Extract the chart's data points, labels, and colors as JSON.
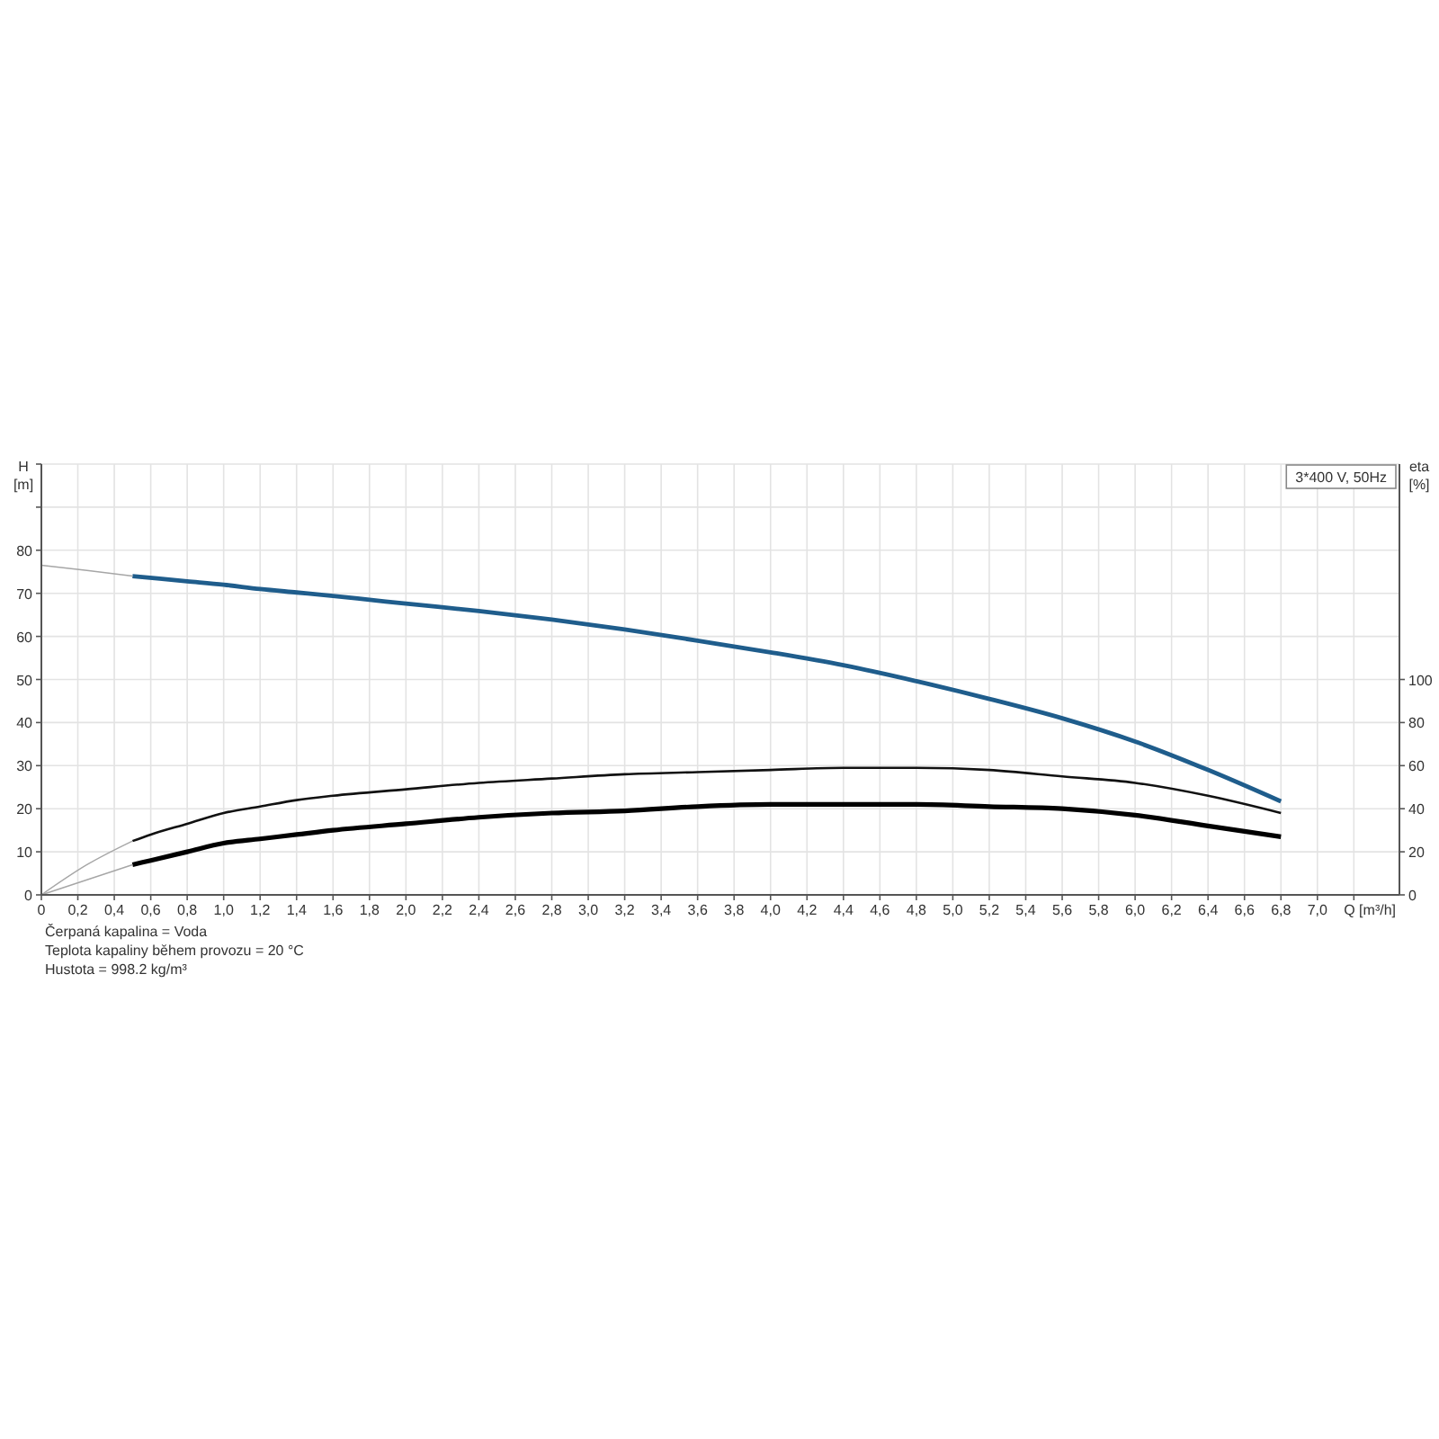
{
  "chart_data": {
    "type": "line",
    "title": "3*400 V, 50Hz",
    "xlabel": "Q [m³/h]",
    "ylabel": "H\n[m]",
    "y2label": "eta\n[%]",
    "annotations": [
      "Čerpaná kapalina = Voda",
      "Teplota kapaliny během provozu = 20 °C",
      "Hustota = 998.2 kg/m³"
    ],
    "xlim": [
      0,
      7.45
    ],
    "ylim": [
      0,
      100
    ],
    "y2lim": [
      0,
      200
    ],
    "xticks": [
      0,
      {
        "value": 0.2,
        "label": "0,2"
      },
      {
        "value": 0.4,
        "label": "0,4"
      },
      {
        "value": 0.6,
        "label": "0,6"
      },
      {
        "value": 0.8,
        "label": "0,8"
      },
      {
        "value": 1.0,
        "label": "1,0"
      },
      {
        "value": 1.2,
        "label": "1,2"
      },
      {
        "value": 1.4,
        "label": "1,4"
      },
      {
        "value": 1.6,
        "label": "1,6"
      },
      {
        "value": 1.8,
        "label": "1,8"
      },
      {
        "value": 2.0,
        "label": "2,0"
      },
      {
        "value": 2.2,
        "label": "2,2"
      },
      {
        "value": 2.4,
        "label": "2,4"
      },
      {
        "value": 2.6,
        "label": "2,6"
      },
      {
        "value": 2.8,
        "label": "2,8"
      },
      {
        "value": 3.0,
        "label": "3,0"
      },
      {
        "value": 3.2,
        "label": "3,2"
      },
      {
        "value": 3.4,
        "label": "3,4"
      },
      {
        "value": 3.6,
        "label": "3,6"
      },
      {
        "value": 3.8,
        "label": "3,8"
      },
      {
        "value": 4.0,
        "label": "4,0"
      },
      {
        "value": 4.2,
        "label": "4,2"
      },
      {
        "value": 4.4,
        "label": "4,4"
      },
      {
        "value": 4.6,
        "label": "4,6"
      },
      {
        "value": 4.8,
        "label": "4,8"
      },
      {
        "value": 5.0,
        "label": "5,0"
      },
      {
        "value": 5.2,
        "label": "5,2"
      },
      {
        "value": 5.4,
        "label": "5,4"
      },
      {
        "value": 5.6,
        "label": "5,6"
      },
      {
        "value": 5.8,
        "label": "5,8"
      },
      {
        "value": 6.0,
        "label": "6,0"
      },
      {
        "value": 6.2,
        "label": "6,2"
      },
      {
        "value": 6.4,
        "label": "6,4"
      },
      {
        "value": 6.6,
        "label": "6,6"
      },
      {
        "value": 6.8,
        "label": "6,8"
      },
      {
        "value": 7.0,
        "label": "7,0"
      },
      {
        "value": 7.2,
        "label": null
      }
    ],
    "yticks": [
      0,
      10,
      20,
      30,
      40,
      50,
      60,
      70,
      80,
      {
        "value": 90,
        "label": null
      },
      {
        "value": 100,
        "label": null
      }
    ],
    "y2ticks": [
      0,
      20,
      40,
      60,
      80,
      100
    ],
    "grid": true,
    "series": [
      {
        "color": "#1f5d8c",
        "x": [
          0.5,
          0.8,
          1.0,
          1.2,
          1.4,
          1.6,
          1.8,
          2.0,
          2.4,
          2.8,
          3.2,
          3.6,
          4.0,
          4.4,
          4.8,
          5.2,
          5.6,
          6.0,
          6.4,
          6.8
        ],
        "values": [
          74,
          72.8,
          72,
          71,
          70.2,
          69.4,
          68.5,
          67.6,
          65.9,
          63.9,
          61.6,
          59,
          56.3,
          53.3,
          49.6,
          45.5,
          41,
          35.6,
          29,
          21.7
        ]
      },
      {
        "color": "#a6a6a6",
        "x": [
          0,
          0.25,
          0.5
        ],
        "values": [
          76.5,
          75.3,
          74
        ]
      },
      {
        "color": "#111111",
        "axis": "y2",
        "x": [
          0.5,
          0.6,
          0.8,
          1.0,
          1.2,
          1.4,
          1.6,
          2.0,
          2.4,
          2.8,
          3.2,
          3.6,
          4.0,
          4.4,
          4.8,
          5.2,
          5.6,
          6.0,
          6.4,
          6.8
        ],
        "values": [
          25,
          28,
          33,
          38,
          41,
          44,
          46,
          49,
          52,
          54,
          56,
          57,
          58,
          59,
          59,
          58,
          55,
          52,
          46,
          38
        ]
      },
      {
        "color": "#a6a6a6",
        "axis": "y2",
        "x": [
          0,
          0.25,
          0.5
        ],
        "values": [
          0,
          14,
          25
        ]
      },
      {
        "color": "#000000",
        "axis": "y2",
        "x": [
          0.5,
          0.6,
          0.8,
          1.0,
          1.2,
          1.4,
          1.6,
          2.0,
          2.4,
          2.8,
          3.2,
          3.6,
          4.0,
          4.4,
          4.8,
          5.2,
          5.6,
          6.0,
          6.4,
          6.8
        ],
        "values": [
          14,
          16,
          20,
          24,
          26,
          28,
          30,
          33,
          36,
          38,
          39,
          41,
          42,
          42,
          42,
          41,
          40,
          37,
          32,
          27
        ]
      },
      {
        "color": "#a6a6a6",
        "axis": "y2",
        "x": [
          0,
          0.25,
          0.5
        ],
        "values": [
          0,
          7,
          14
        ]
      }
    ]
  }
}
